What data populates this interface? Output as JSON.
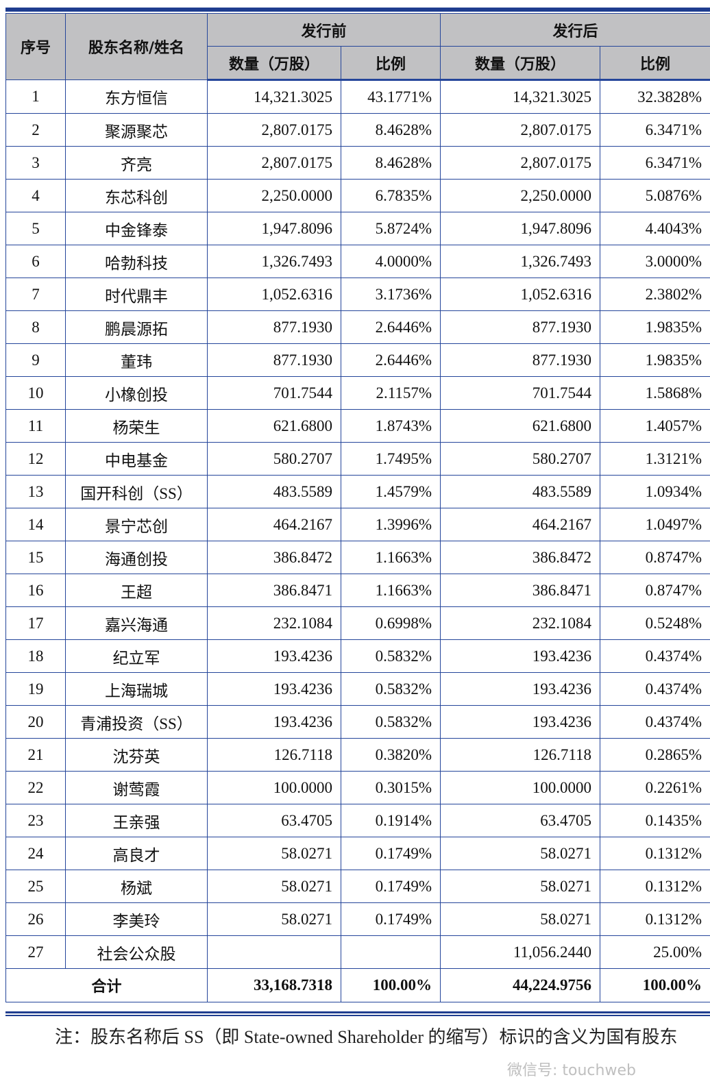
{
  "header": {
    "seq": "序号",
    "name": "股东名称/姓名",
    "before": "发行前",
    "after": "发行后",
    "qty": "数量（万股）",
    "ratio": "比例"
  },
  "rows": [
    [
      "1",
      "东方恒信",
      "14,321.3025",
      "43.1771%",
      "14,321.3025",
      "32.3828%"
    ],
    [
      "2",
      "聚源聚芯",
      "2,807.0175",
      "8.4628%",
      "2,807.0175",
      "6.3471%"
    ],
    [
      "3",
      "齐亮",
      "2,807.0175",
      "8.4628%",
      "2,807.0175",
      "6.3471%"
    ],
    [
      "4",
      "东芯科创",
      "2,250.0000",
      "6.7835%",
      "2,250.0000",
      "5.0876%"
    ],
    [
      "5",
      "中金锋泰",
      "1,947.8096",
      "5.8724%",
      "1,947.8096",
      "4.4043%"
    ],
    [
      "6",
      "哈勃科技",
      "1,326.7493",
      "4.0000%",
      "1,326.7493",
      "3.0000%"
    ],
    [
      "7",
      "时代鼎丰",
      "1,052.6316",
      "3.1736%",
      "1,052.6316",
      "2.3802%"
    ],
    [
      "8",
      "鹏晨源拓",
      "877.1930",
      "2.6446%",
      "877.1930",
      "1.9835%"
    ],
    [
      "9",
      "董玮",
      "877.1930",
      "2.6446%",
      "877.1930",
      "1.9835%"
    ],
    [
      "10",
      "小橡创投",
      "701.7544",
      "2.1157%",
      "701.7544",
      "1.5868%"
    ],
    [
      "11",
      "杨荣生",
      "621.6800",
      "1.8743%",
      "621.6800",
      "1.4057%"
    ],
    [
      "12",
      "中电基金",
      "580.2707",
      "1.7495%",
      "580.2707",
      "1.3121%"
    ],
    [
      "13",
      "国开科创（SS）",
      "483.5589",
      "1.4579%",
      "483.5589",
      "1.0934%"
    ],
    [
      "14",
      "景宁芯创",
      "464.2167",
      "1.3996%",
      "464.2167",
      "1.0497%"
    ],
    [
      "15",
      "海通创投",
      "386.8472",
      "1.1663%",
      "386.8472",
      "0.8747%"
    ],
    [
      "16",
      "王超",
      "386.8471",
      "1.1663%",
      "386.8471",
      "0.8747%"
    ],
    [
      "17",
      "嘉兴海通",
      "232.1084",
      "0.6998%",
      "232.1084",
      "0.5248%"
    ],
    [
      "18",
      "纪立军",
      "193.4236",
      "0.5832%",
      "193.4236",
      "0.4374%"
    ],
    [
      "19",
      "上海瑞城",
      "193.4236",
      "0.5832%",
      "193.4236",
      "0.4374%"
    ],
    [
      "20",
      "青浦投资（SS）",
      "193.4236",
      "0.5832%",
      "193.4236",
      "0.4374%"
    ],
    [
      "21",
      "沈芬英",
      "126.7118",
      "0.3820%",
      "126.7118",
      "0.2865%"
    ],
    [
      "22",
      "谢莺霞",
      "100.0000",
      "0.3015%",
      "100.0000",
      "0.2261%"
    ],
    [
      "23",
      "王亲强",
      "63.4705",
      "0.1914%",
      "63.4705",
      "0.1435%"
    ],
    [
      "24",
      "高良才",
      "58.0271",
      "0.1749%",
      "58.0271",
      "0.1312%"
    ],
    [
      "25",
      "杨斌",
      "58.0271",
      "0.1749%",
      "58.0271",
      "0.1312%"
    ],
    [
      "26",
      "李美玲",
      "58.0271",
      "0.1749%",
      "58.0271",
      "0.1312%"
    ],
    [
      "27",
      "社会公众股",
      "",
      "",
      "11,056.2440",
      "25.00%"
    ]
  ],
  "total": {
    "label": "合计",
    "before_qty": "33,168.7318",
    "before_ratio": "100.00%",
    "after_qty": "44,224.9756",
    "after_ratio": "100.00%"
  },
  "note": "注：股东名称后 SS（即 State-owned Shareholder 的缩写）标识的含义为国有股东",
  "watermark": "微信号: touchweb",
  "colors": {
    "rule": "#24459a",
    "header_bg": "#c1c1c3"
  }
}
